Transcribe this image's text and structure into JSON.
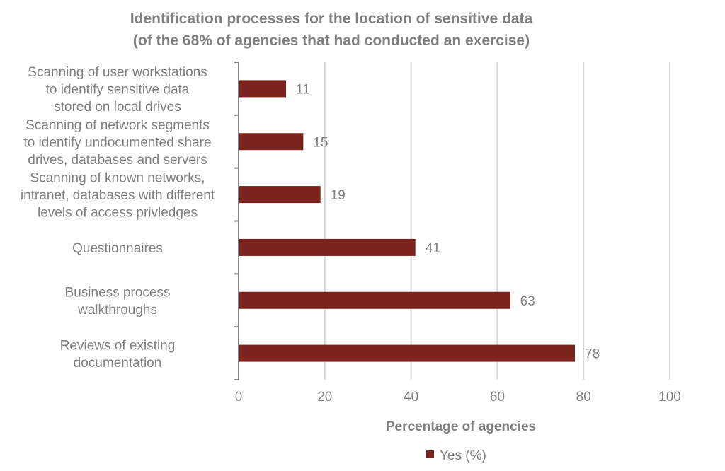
{
  "chart_data": {
    "type": "bar",
    "orientation": "horizontal",
    "title": [
      "Identification processes for the location of sensitive data",
      "(of the 68% of agencies that had conducted an exercise)"
    ],
    "categories": [
      [
        "Scanning of user workstations",
        "to identify sensitive data",
        "stored on local drives"
      ],
      [
        "Scanning of network segments",
        "to identify undocumented share",
        "drives, databases and servers"
      ],
      [
        "Scanning of known networks,",
        "intranet, databases with different",
        "levels of access privledges"
      ],
      [
        "Questionnaires"
      ],
      [
        "Business process",
        "walkthroughs"
      ],
      [
        "Reviews of existing",
        "documentation"
      ]
    ],
    "series": [
      {
        "name": "Yes (%)",
        "values": [
          11,
          15,
          19,
          41,
          63,
          78
        ]
      }
    ],
    "xlabel": "Percentage of agencies",
    "ylabel": "",
    "xlim": [
      0,
      100
    ],
    "xticks": [
      "0",
      "20",
      "40",
      "60",
      "80",
      "100"
    ],
    "grid": true,
    "legend": "bottom-center",
    "colors": {
      "bar": "#7b231c",
      "grid": "#d9d9d9",
      "axis": "#868686",
      "text": "#7f7f7f"
    }
  }
}
